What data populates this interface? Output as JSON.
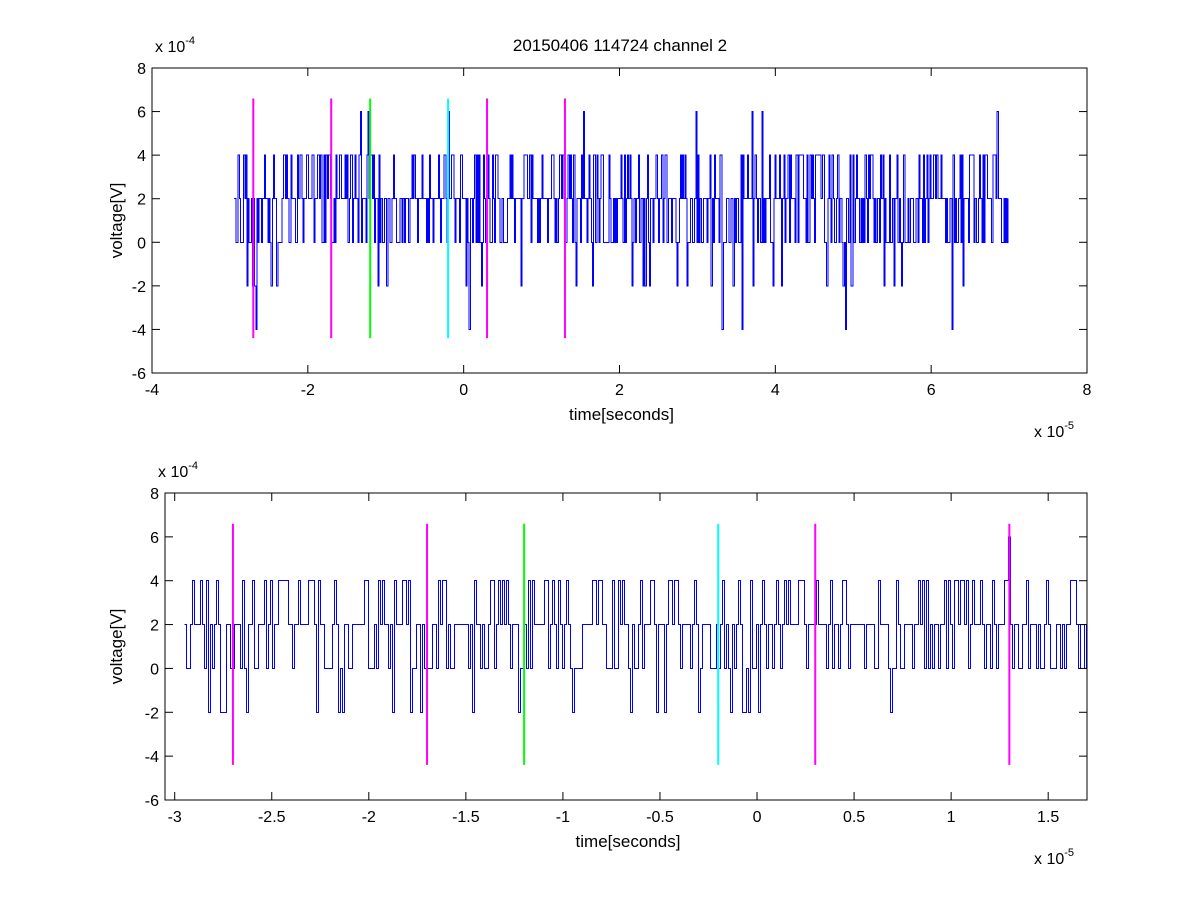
{
  "figure": {
    "title": "20150406 114724 channel 2"
  },
  "colors": {
    "signal": "#0000ff",
    "magenta": "#ff00ff",
    "green": "#00ff00",
    "cyan": "#00ffff",
    "axes": "#000000",
    "background": "#ffffff"
  },
  "chart_data": [
    {
      "type": "line",
      "title": "20150406 114724 channel 2",
      "xlabel": "time[seconds]",
      "ylabel": "voltage[V]",
      "x_scale_label": "x 10",
      "x_scale_exp": "-5",
      "y_scale_label": "x 10",
      "y_scale_exp": "-4",
      "xlim": [
        -4e-05,
        8e-05
      ],
      "ylim": [
        -0.0006,
        0.0008
      ],
      "x_ticks": [
        -4e-05,
        -2e-05,
        0,
        2e-05,
        4e-05,
        6e-05,
        8e-05
      ],
      "x_tick_labels": [
        "-4",
        "-2",
        "0",
        "2",
        "4",
        "6",
        "8"
      ],
      "y_ticks": [
        -0.0006,
        -0.0004,
        -0.0002,
        0,
        0.0002,
        0.0004,
        0.0006,
        0.0008
      ],
      "y_tick_labels": [
        "-6",
        "-4",
        "-2",
        "0",
        "2",
        "4",
        "6",
        "8"
      ],
      "grid": false,
      "series": [
        {
          "kind": "signal",
          "color": "signal",
          "x_range": [
            -2.95e-05,
            7e-05
          ],
          "levels": [
            -0.0004,
            -0.0002,
            0,
            0.0002,
            0.0004,
            0.0006
          ],
          "baseline": 0.0002
        }
      ],
      "markers": [
        {
          "x": -2.7e-05,
          "y_range": [
            -0.00044,
            0.00066
          ],
          "color": "magenta"
        },
        {
          "x": -1.7e-05,
          "y_range": [
            -0.00044,
            0.00066
          ],
          "color": "magenta"
        },
        {
          "x": -1.2e-05,
          "y_range": [
            -0.00044,
            0.00066
          ],
          "color": "green"
        },
        {
          "x": -2e-06,
          "y_range": [
            -0.00044,
            0.00066
          ],
          "color": "cyan"
        },
        {
          "x": 3e-06,
          "y_range": [
            -0.00044,
            0.00066
          ],
          "color": "magenta"
        },
        {
          "x": 1.3e-05,
          "y_range": [
            -0.00044,
            0.00066
          ],
          "color": "magenta"
        }
      ]
    },
    {
      "type": "line",
      "title": "",
      "xlabel": "time[seconds]",
      "ylabel": "voltage[V]",
      "x_scale_label": "x 10",
      "x_scale_exp": "-5",
      "y_scale_label": "x 10",
      "y_scale_exp": "-4",
      "xlim": [
        -3.05e-05,
        1.7e-05
      ],
      "ylim": [
        -0.0006,
        0.0008
      ],
      "x_ticks": [
        -3e-05,
        -2.5e-05,
        -2e-05,
        -1.5e-05,
        -1e-05,
        -5e-06,
        0,
        5e-06,
        1e-05,
        1.5e-05
      ],
      "x_tick_labels": [
        "-3",
        "-2.5",
        "-2",
        "-1.5",
        "-1",
        "-0.5",
        "0",
        "0.5",
        "1",
        "1.5"
      ],
      "y_ticks": [
        -0.0006,
        -0.0004,
        -0.0002,
        0,
        0.0002,
        0.0004,
        0.0006,
        0.0008
      ],
      "y_tick_labels": [
        "-6",
        "-4",
        "-2",
        "0",
        "2",
        "4",
        "6",
        "8"
      ],
      "grid": false,
      "series": [
        {
          "kind": "signal",
          "color": "signal",
          "x_range": [
            -2.95e-05,
            1.7e-05
          ],
          "levels": [
            -0.0002,
            0,
            0.0002,
            0.0004,
            0.0006
          ],
          "baseline": 0.0002
        }
      ],
      "markers": [
        {
          "x": -2.7e-05,
          "y_range": [
            -0.00044,
            0.00066
          ],
          "color": "magenta"
        },
        {
          "x": -1.7e-05,
          "y_range": [
            -0.00044,
            0.00066
          ],
          "color": "magenta"
        },
        {
          "x": -1.2e-05,
          "y_range": [
            -0.00044,
            0.00066
          ],
          "color": "green"
        },
        {
          "x": -2e-06,
          "y_range": [
            -0.00044,
            0.00066
          ],
          "color": "cyan"
        },
        {
          "x": 3e-06,
          "y_range": [
            -0.00044,
            0.00066
          ],
          "color": "magenta"
        },
        {
          "x": 1.3e-05,
          "y_range": [
            -0.00044,
            0.00066
          ],
          "color": "magenta"
        }
      ]
    }
  ]
}
